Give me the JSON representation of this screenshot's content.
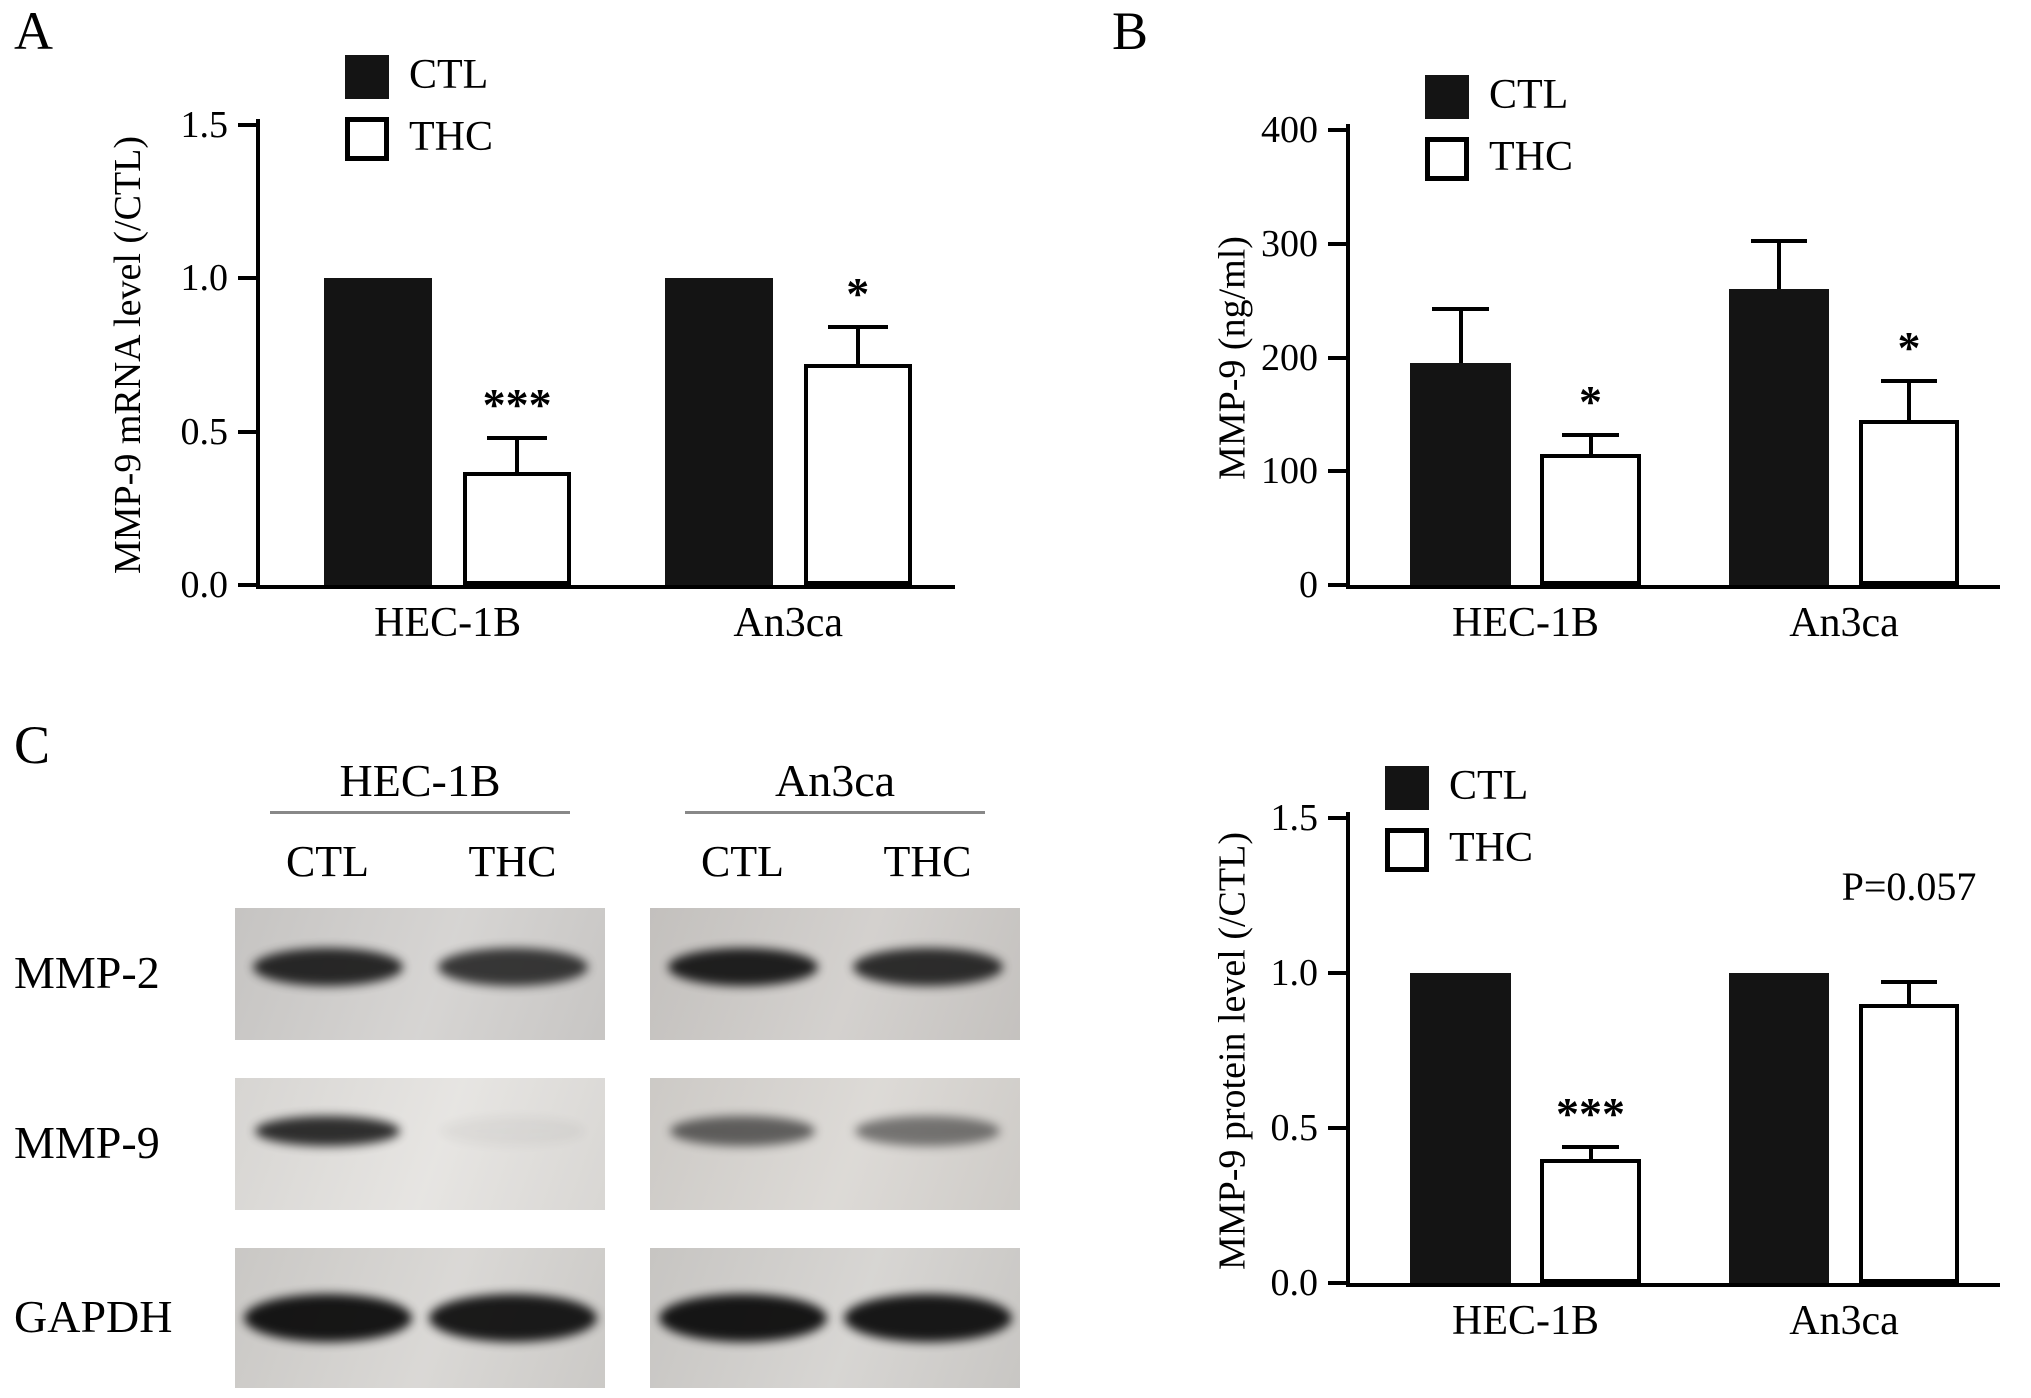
{
  "figure": {
    "background": "#ffffff",
    "panels": {
      "a": "A",
      "b": "B",
      "c": "C"
    }
  },
  "colors": {
    "ctl_fill": "#141414",
    "thc_fill": "#ffffff",
    "axis": "#000000"
  },
  "chart_data": [
    {
      "id": "mmp9-mrna",
      "type": "bar",
      "panel": "A",
      "title": "",
      "xlabel": "",
      "ylabel": "MMP-9 mRNA level (/CTL)",
      "ylim": [
        0,
        1.5
      ],
      "yticks": [
        {
          "value": 0,
          "label": "0.0"
        },
        {
          "value": 0.5,
          "label": "0.5"
        },
        {
          "value": 1.0,
          "label": "1.0"
        },
        {
          "value": 1.5,
          "label": "1.5"
        }
      ],
      "categories": [
        "HEC-1B",
        "An3ca"
      ],
      "series": [
        {
          "name": "CTL",
          "fill": "#141414",
          "values": [
            1.0,
            1.0
          ],
          "errors": [
            0,
            0
          ]
        },
        {
          "name": "THC",
          "fill": "#ffffff",
          "values": [
            0.37,
            0.72
          ],
          "errors": [
            0.11,
            0.12
          ]
        }
      ],
      "annotations": [
        {
          "category_index": 0,
          "series_index": 1,
          "text": "***",
          "kind": "stars"
        },
        {
          "category_index": 1,
          "series_index": 1,
          "text": "*",
          "kind": "stars"
        }
      ],
      "legend_position": "upper-left",
      "grid": false
    },
    {
      "id": "mmp9-secretion",
      "type": "bar",
      "panel": "B",
      "title": "",
      "xlabel": "",
      "ylabel": "MMP-9 (ng/ml)",
      "ylim": [
        0,
        400
      ],
      "yticks": [
        {
          "value": 0,
          "label": "0"
        },
        {
          "value": 100,
          "label": "100"
        },
        {
          "value": 200,
          "label": "200"
        },
        {
          "value": 300,
          "label": "300"
        },
        {
          "value": 400,
          "label": "400"
        }
      ],
      "categories": [
        "HEC-1B",
        "An3ca"
      ],
      "series": [
        {
          "name": "CTL",
          "fill": "#141414",
          "values": [
            195,
            260
          ],
          "errors": [
            48,
            42
          ]
        },
        {
          "name": "THC",
          "fill": "#ffffff",
          "values": [
            115,
            145
          ],
          "errors": [
            17,
            34
          ]
        }
      ],
      "annotations": [
        {
          "category_index": 0,
          "series_index": 1,
          "text": "*",
          "kind": "stars"
        },
        {
          "category_index": 1,
          "series_index": 1,
          "text": "*",
          "kind": "stars"
        }
      ],
      "legend_position": "upper-left",
      "grid": false
    },
    {
      "id": "mmp9-protein",
      "type": "bar",
      "panel": "C",
      "title": "",
      "xlabel": "",
      "ylabel": "MMP-9 protein level (/CTL)",
      "ylim": [
        0,
        1.5
      ],
      "yticks": [
        {
          "value": 0,
          "label": "0.0"
        },
        {
          "value": 0.5,
          "label": "0.5"
        },
        {
          "value": 1.0,
          "label": "1.0"
        },
        {
          "value": 1.5,
          "label": "1.5"
        }
      ],
      "categories": [
        "HEC-1B",
        "An3ca"
      ],
      "series": [
        {
          "name": "CTL",
          "fill": "#141414",
          "values": [
            1.0,
            1.0
          ],
          "errors": [
            0,
            0
          ]
        },
        {
          "name": "THC",
          "fill": "#ffffff",
          "values": [
            0.4,
            0.9
          ],
          "errors": [
            0.04,
            0.07
          ]
        }
      ],
      "annotations": [
        {
          "category_index": 0,
          "series_index": 1,
          "text": "***",
          "kind": "stars"
        },
        {
          "category_index": 1,
          "series_index": 1,
          "text": "P=0.057",
          "kind": "text",
          "y": 1.27
        }
      ],
      "legend_position": "upper-left",
      "grid": false
    }
  ],
  "blots": {
    "groups": [
      "HEC-1B",
      "An3ca"
    ],
    "lanes": [
      "CTL",
      "THC"
    ],
    "rows": [
      {
        "label": "MMP-2",
        "bands": [
          0.88,
          0.8,
          0.92,
          0.85
        ],
        "bgs": [
          "#d2d0ce",
          "#cfccc9"
        ]
      },
      {
        "label": "MMP-9",
        "bands": [
          0.85,
          0.04,
          0.6,
          0.5
        ],
        "bgs": [
          "#e4e2df",
          "#d9d6d2"
        ]
      },
      {
        "label": "GAPDH",
        "bands": [
          0.97,
          0.95,
          0.97,
          0.96
        ],
        "bgs": [
          "#d6d4d1",
          "#d3d1ce"
        ]
      }
    ]
  }
}
